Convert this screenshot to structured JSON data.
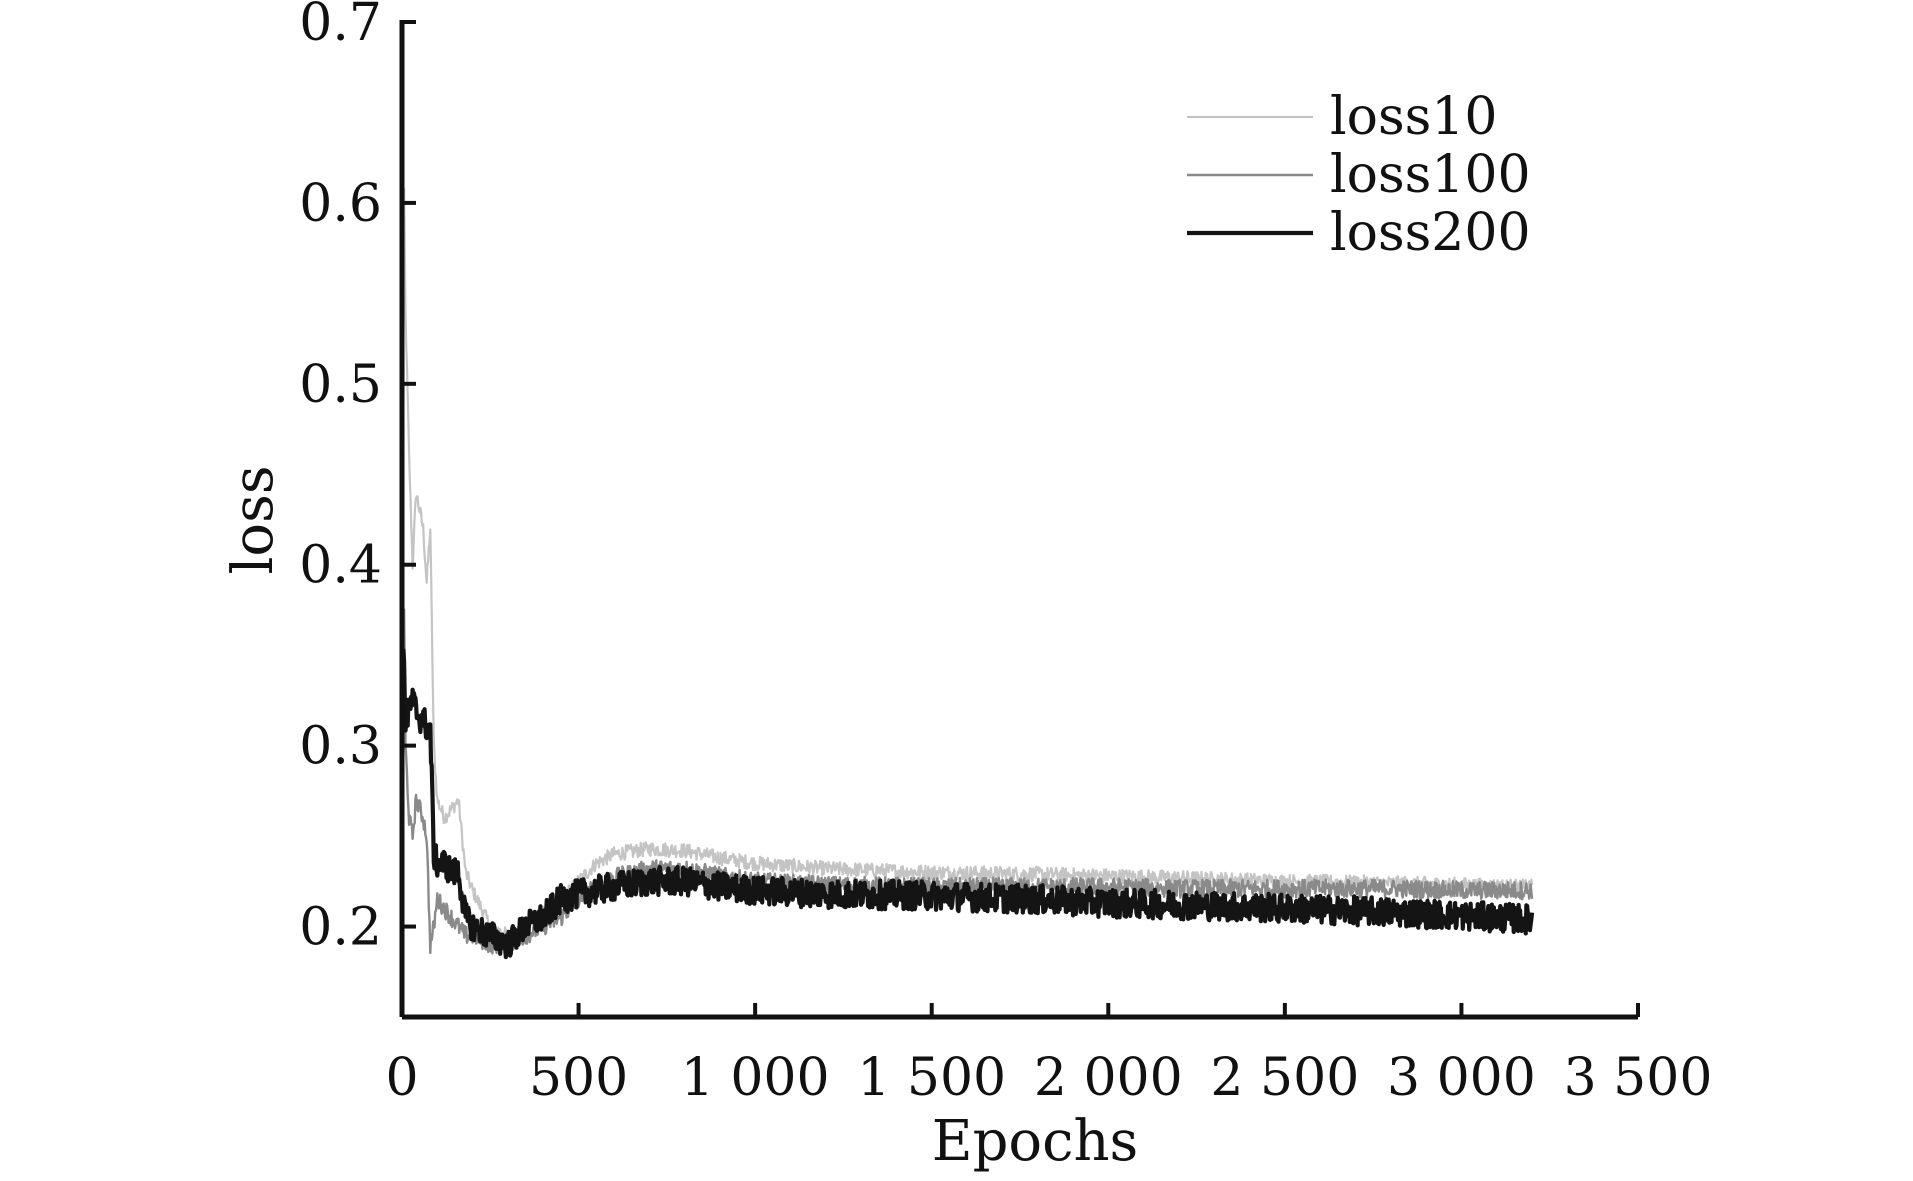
{
  "chart_data": {
    "type": "line",
    "title": "",
    "xlabel": "Epochs",
    "ylabel": "loss",
    "xlim": [
      0,
      3500
    ],
    "ylim": [
      0.15,
      0.7
    ],
    "x_ticks": [
      0,
      500,
      1000,
      1500,
      2000,
      2500,
      3000,
      3500
    ],
    "x_tick_labels": [
      "0",
      "500",
      "1 000",
      "1 500",
      "2 000",
      "2 500",
      "3 000",
      "3 500"
    ],
    "y_ticks": [
      0.2,
      0.3,
      0.4,
      0.5,
      0.6,
      0.7
    ],
    "y_tick_labels": [
      "0.2",
      "0.3",
      "0.4",
      "0.5",
      "0.6",
      "0.7"
    ],
    "grid": false,
    "legend_position": "top-right",
    "series": [
      {
        "name": "loss10",
        "color": "#c4c4c4",
        "noise": 0.004,
        "x": [
          0,
          5,
          10,
          20,
          30,
          40,
          50,
          60,
          70,
          80,
          90,
          100,
          120,
          140,
          160,
          180,
          200,
          250,
          300,
          350,
          400,
          450,
          500,
          550,
          600,
          700,
          800,
          900,
          1000,
          1200,
          1500,
          1800,
          2000,
          2200,
          2500,
          2800,
          3000,
          3200
        ],
        "y": [
          0.45,
          0.62,
          0.54,
          0.46,
          0.4,
          0.44,
          0.43,
          0.42,
          0.39,
          0.42,
          0.3,
          0.27,
          0.26,
          0.265,
          0.27,
          0.23,
          0.22,
          0.2,
          0.195,
          0.2,
          0.21,
          0.215,
          0.225,
          0.235,
          0.24,
          0.243,
          0.242,
          0.238,
          0.235,
          0.232,
          0.23,
          0.229,
          0.228,
          0.227,
          0.225,
          0.224,
          0.223,
          0.222
        ]
      },
      {
        "name": "loss100",
        "color": "#8a8a8a",
        "noise": 0.005,
        "x": [
          0,
          5,
          10,
          20,
          30,
          40,
          50,
          60,
          70,
          80,
          90,
          100,
          120,
          140,
          160,
          180,
          200,
          250,
          300,
          350,
          400,
          450,
          500,
          550,
          600,
          700,
          800,
          900,
          1000,
          1200,
          1500,
          1800,
          2000,
          2200,
          2500,
          2800,
          3000,
          3200
        ],
        "y": [
          0.3,
          0.39,
          0.3,
          0.26,
          0.25,
          0.27,
          0.265,
          0.26,
          0.25,
          0.19,
          0.2,
          0.215,
          0.21,
          0.205,
          0.2,
          0.195,
          0.195,
          0.19,
          0.19,
          0.195,
          0.2,
          0.205,
          0.215,
          0.222,
          0.227,
          0.232,
          0.232,
          0.228,
          0.225,
          0.223,
          0.222,
          0.222,
          0.222,
          0.221,
          0.221,
          0.221,
          0.22,
          0.22
        ]
      },
      {
        "name": "loss200",
        "color": "#141414",
        "noise": 0.008,
        "x": [
          0,
          5,
          10,
          20,
          30,
          40,
          50,
          60,
          70,
          80,
          90,
          100,
          120,
          140,
          160,
          180,
          200,
          250,
          300,
          350,
          400,
          450,
          500,
          550,
          600,
          700,
          800,
          900,
          1000,
          1200,
          1500,
          1800,
          2000,
          2200,
          2500,
          2800,
          3000,
          3200
        ],
        "y": [
          0.33,
          0.36,
          0.31,
          0.32,
          0.325,
          0.32,
          0.315,
          0.315,
          0.31,
          0.31,
          0.24,
          0.235,
          0.235,
          0.23,
          0.23,
          0.205,
          0.2,
          0.195,
          0.19,
          0.2,
          0.205,
          0.215,
          0.218,
          0.22,
          0.222,
          0.225,
          0.225,
          0.222,
          0.22,
          0.218,
          0.217,
          0.215,
          0.213,
          0.212,
          0.21,
          0.208,
          0.206,
          0.204
        ]
      }
    ]
  }
}
